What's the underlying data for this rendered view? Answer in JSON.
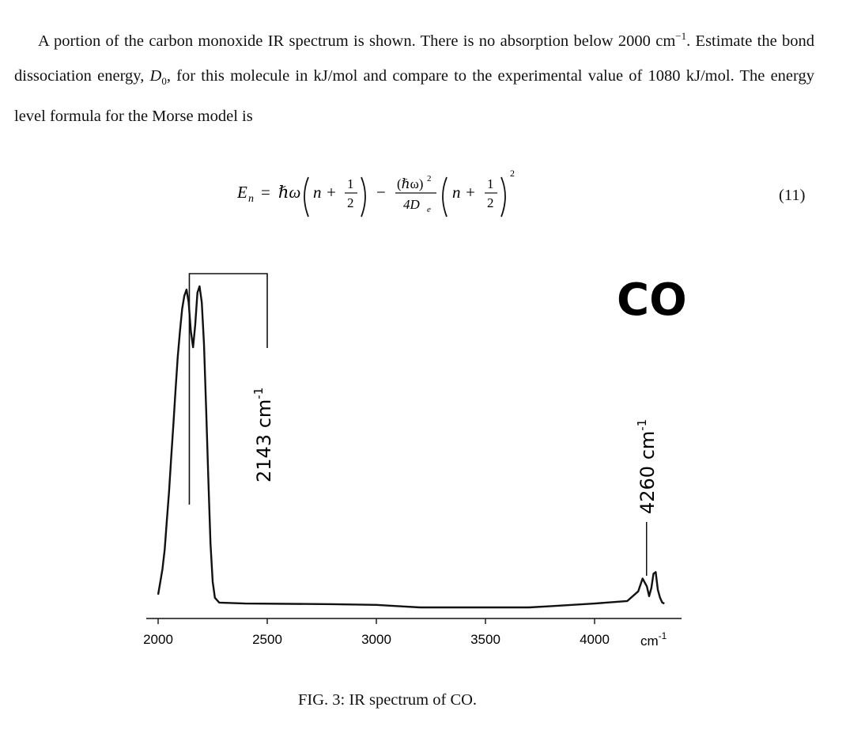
{
  "problem": {
    "part1": "A portion of the carbon monoxide IR spectrum is shown. There is no absorption below 2000 cm",
    "part1_sup": "−1",
    "part2": ". Estimate the bond dissociation energy, ",
    "d0_symbol": "D",
    "d0_sub": "0",
    "part3": ", for this molecule in kJ/mol and compare to the experimental value of 1080 kJ/mol. The energy level formula for the Morse model is"
  },
  "equation": {
    "lhs": "E",
    "lhs_sub": "n",
    "equals": "=",
    "hbar_omega": "ℏω",
    "n_plus": "n +",
    "one": "1",
    "two": "2",
    "minus": "−",
    "num": "(ℏω)",
    "num_sup": "2",
    "den": "4D",
    "den_sub": "e",
    "power": "2",
    "number": "(11)"
  },
  "caption": "FIG. 3: IR spectrum of CO.",
  "chart_data": {
    "type": "line",
    "xlim": [
      1980,
      4320
    ],
    "x_ticks": [
      2000,
      2500,
      3000,
      3500,
      4000
    ],
    "x_tick_labels": [
      "2000",
      "2500",
      "3000",
      "3500",
      "4000"
    ],
    "x_unit_label": "cm",
    "x_unit_sup": "-1",
    "ylim": [
      0,
      1
    ],
    "grid": false,
    "series": [
      {
        "x": [
          2000,
          2010,
          2020,
          2030,
          2040,
          2050,
          2060,
          2070,
          2080,
          2090,
          2100,
          2110,
          2120,
          2130,
          2140,
          2150,
          2160,
          2170,
          2180,
          2190,
          2200,
          2210,
          2220,
          2230,
          2240,
          2250,
          2260,
          2280,
          2400,
          2800,
          3000,
          3100,
          3200,
          3400,
          3600,
          3700,
          3800,
          4000,
          4150,
          4200,
          4220,
          4240,
          4250,
          4260,
          4270,
          4280,
          4290,
          4300,
          4310,
          4320
        ],
        "y": [
          0.04,
          0.08,
          0.12,
          0.18,
          0.27,
          0.36,
          0.47,
          0.57,
          0.68,
          0.78,
          0.86,
          0.93,
          0.97,
          0.99,
          0.95,
          0.86,
          0.81,
          0.88,
          0.98,
          1.0,
          0.95,
          0.82,
          0.62,
          0.4,
          0.2,
          0.08,
          0.03,
          0.015,
          0.012,
          0.01,
          0.008,
          0.004,
          0.0,
          0.0,
          0.0,
          0.0,
          0.004,
          0.012,
          0.02,
          0.05,
          0.09,
          0.065,
          0.035,
          0.06,
          0.105,
          0.11,
          0.055,
          0.03,
          0.015,
          0.012
        ]
      }
    ],
    "annotations": [
      {
        "text": "2143 cm",
        "sup": "-1",
        "x": 2143
      },
      {
        "text": "4260 cm",
        "sup": "-1",
        "x": 4260
      }
    ],
    "label": "CO"
  }
}
